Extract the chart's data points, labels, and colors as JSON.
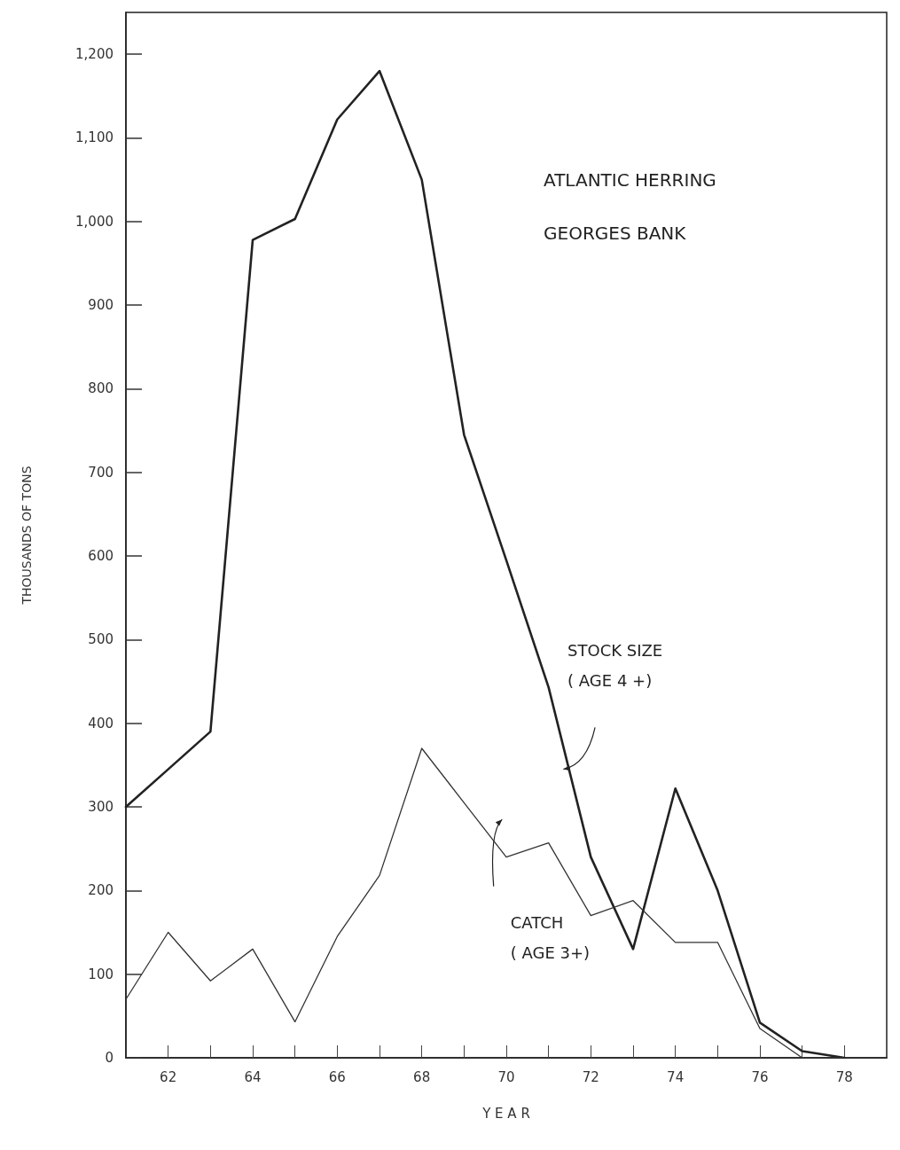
{
  "chart_data": {
    "type": "line",
    "title": "ATLANTIC HERRING",
    "subtitle": "GEORGES BANK",
    "xlabel": "Y E A R",
    "ylabel": "THOUSANDS OF TONS",
    "x": [
      61,
      62,
      63,
      64,
      65,
      66,
      67,
      68,
      69,
      70,
      71,
      72,
      73,
      74,
      75,
      76,
      77,
      78
    ],
    "series": [
      {
        "name": "STOCK SIZE\n( AGE 4 +)",
        "color": "#222222",
        "values": [
          300,
          345,
          390,
          978,
          1003,
          1122,
          1180,
          1050,
          745,
          595,
          443,
          240,
          130,
          322,
          200,
          42,
          8,
          0
        ]
      },
      {
        "name": "CATCH\n( AGE 3+)",
        "color": "#333333",
        "values": [
          70,
          150,
          92,
          130,
          43,
          145,
          218,
          370,
          305,
          240,
          257,
          170,
          188,
          138,
          138,
          35,
          0,
          0
        ]
      }
    ],
    "xlim": [
      61,
      79
    ],
    "xticks": [
      {
        "value": 62,
        "label": "62"
      },
      {
        "value": 63,
        "label": null
      },
      {
        "value": 64,
        "label": "64"
      },
      {
        "value": 65,
        "label": null
      },
      {
        "value": 66,
        "label": "66"
      },
      {
        "value": 67,
        "label": null
      },
      {
        "value": 68,
        "label": "68"
      },
      {
        "value": 69,
        "label": null
      },
      {
        "value": 70,
        "label": "70"
      },
      {
        "value": 71,
        "label": null
      },
      {
        "value": 72,
        "label": "72"
      },
      {
        "value": 73,
        "label": null
      },
      {
        "value": 74,
        "label": "74"
      },
      {
        "value": 75,
        "label": null
      },
      {
        "value": 76,
        "label": "76"
      },
      {
        "value": 77,
        "label": null
      },
      {
        "value": 78,
        "label": "78"
      }
    ],
    "ylim": [
      0,
      1250
    ],
    "yticks": [
      0,
      100,
      200,
      300,
      400,
      500,
      600,
      700,
      800,
      900,
      {
        "value": 1000,
        "label": "1,000"
      },
      {
        "value": 1100,
        "label": "1,100"
      },
      {
        "value": 1200,
        "label": "1,200"
      }
    ],
    "grid": false,
    "legend": false,
    "marker": "none",
    "line_style": "solid"
  }
}
